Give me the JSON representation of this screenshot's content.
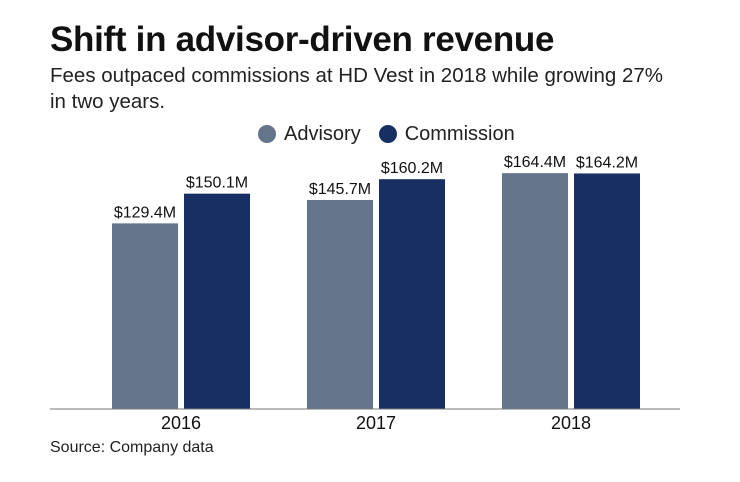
{
  "title": "Shift in advisor-driven revenue",
  "subtitle": "Fees outpaced commissions at HD Vest in 2018 while growing 27% in two years.",
  "source": "Source: Company data",
  "chart_data": {
    "type": "bar",
    "categories": [
      "2016",
      "2017",
      "2018"
    ],
    "series": [
      {
        "name": "Advisory",
        "values": [
          129.4,
          145.7,
          164.4
        ],
        "labels": [
          "$129.4M",
          "$145.7M",
          "$164.4M"
        ],
        "color": "#64748a"
      },
      {
        "name": "Commission",
        "values": [
          150.1,
          160.2,
          164.2
        ],
        "labels": [
          "$150.1M",
          "$160.2M",
          "$164.2M"
        ],
        "color": "#182f63"
      }
    ],
    "ylim": [
      0,
      168
    ],
    "grid": false,
    "legend_position": "top-center"
  }
}
